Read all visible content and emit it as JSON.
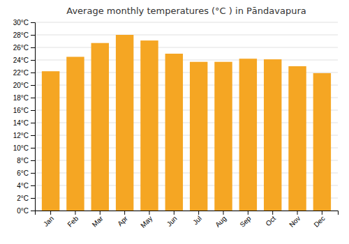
{
  "chart_data": {
    "type": "bar",
    "title": "Average monthly temperatures (°C ) in Pāndavapura",
    "categories": [
      "Jan",
      "Feb",
      "Mar",
      "Apr",
      "May",
      "Jun",
      "Jul",
      "Aug",
      "Sep",
      "Oct",
      "Nov",
      "Dec"
    ],
    "values": [
      22.2,
      24.5,
      26.7,
      28.0,
      27.1,
      25.0,
      23.7,
      23.7,
      24.2,
      24.1,
      23.0,
      21.9
    ],
    "color": "#F5A623",
    "ylim": [
      0,
      30
    ],
    "yticks": [
      {
        "value": 0,
        "label": "0°C"
      },
      {
        "value": 2,
        "label": "2°C"
      },
      {
        "value": 4,
        "label": "4°C"
      },
      {
        "value": 6,
        "label": "6°C"
      },
      {
        "value": 8,
        "label": "8°C"
      },
      {
        "value": 10,
        "label": "10°C"
      },
      {
        "value": 12,
        "label": "12°C"
      },
      {
        "value": 14,
        "label": "14°C"
      },
      {
        "value": 16,
        "label": "16°C"
      },
      {
        "value": 18,
        "label": "18°C"
      },
      {
        "value": 20,
        "label": "20°C"
      },
      {
        "value": 22,
        "label": "22°C"
      },
      {
        "value": 24,
        "label": "24°C"
      },
      {
        "value": 26,
        "label": "26°C"
      },
      {
        "value": 28,
        "label": "28°C"
      },
      {
        "value": 30,
        "label": "30°C"
      }
    ],
    "grid": true
  }
}
